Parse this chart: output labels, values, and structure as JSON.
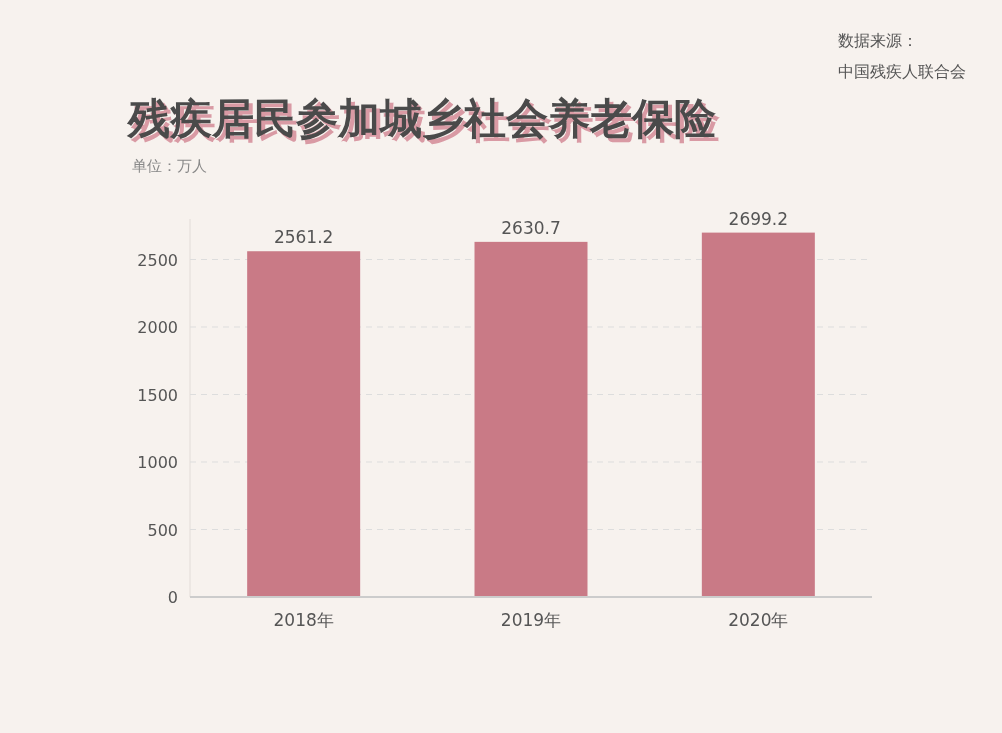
{
  "chart_data": {
    "type": "bar",
    "title": "残疾居民参加城乡社会养老保险",
    "subtitle": "单位：万人",
    "categories": [
      "2018年",
      "2019年",
      "2020年"
    ],
    "series": [
      {
        "color": "#c97a86",
        "values": [
          2561.2,
          2630.7,
          2699.2
        ]
      }
    ],
    "ylim": [
      0,
      2800
    ],
    "yticks": [
      0,
      500,
      1000,
      1500,
      2000,
      2500
    ],
    "grid": "y",
    "data_labels": true,
    "annotations": [
      "数据来源：",
      "中国残疾人联合会"
    ]
  }
}
